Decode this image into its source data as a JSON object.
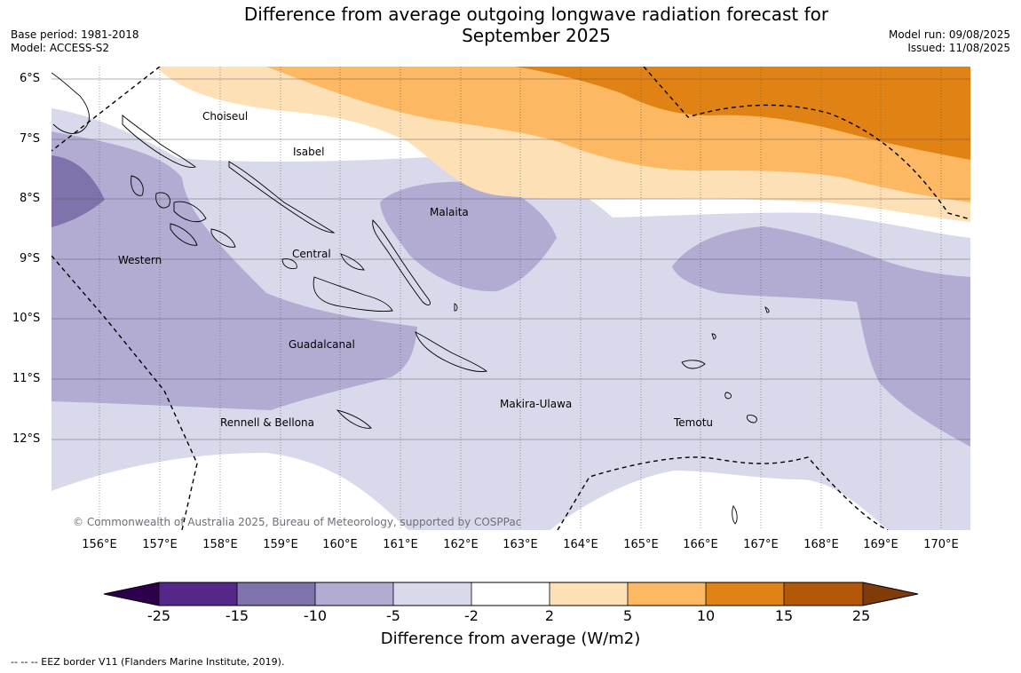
{
  "title": "Difference from average outgoing longwave radiation forecast for September 2025",
  "title_line1": "Difference from average outgoing longwave radiation forecast for",
  "title_line2": "September 2025",
  "meta_left": {
    "base_period": "Base period: 1981-2018",
    "model": "Model: ACCESS-S2"
  },
  "meta_right": {
    "model_run": "Model run: 09/08/2025",
    "issued": "Issued: 11/08/2025"
  },
  "lat_labels": [
    "6°S",
    "7°S",
    "8°S",
    "9°S",
    "10°S",
    "11°S",
    "12°S"
  ],
  "lon_labels": [
    "156°E",
    "157°E",
    "158°E",
    "159°E",
    "160°E",
    "161°E",
    "162°E",
    "163°E",
    "164°E",
    "165°E",
    "166°E",
    "167°E",
    "168°E",
    "169°E",
    "170°E"
  ],
  "regions": [
    "Choiseul",
    "Isabel",
    "Malaita",
    "Western",
    "Central",
    "Guadalcanal",
    "Makira-Ulawa",
    "Rennell & Bellona",
    "Temotu"
  ],
  "copyright": "© Commonwealth of Australia 2025, Bureau of Meteorology, supported by COSPPac",
  "colorbar": {
    "title": "Difference from average (W/m2)",
    "ticks": [
      "-25",
      "-15",
      "-10",
      "-5",
      "-2",
      "2",
      "5",
      "10",
      "15",
      "25"
    ],
    "colors": {
      "below_-25": "#2d004b",
      "-25_-15": "#542788",
      "-15_-10": "#8073ac",
      "-10_-5": "#b2abd2",
      "-5_-2": "#d8daeb",
      "-2_2": "#ffffff",
      "2_5": "#fee0b6",
      "5_10": "#fdb863",
      "10_15": "#e08214",
      "15_25": "#b35806",
      "above_25": "#7f3b08"
    }
  },
  "footnote": "--  --  -- EEZ border V11 (Flanders Marine Institute, 2019)."
}
